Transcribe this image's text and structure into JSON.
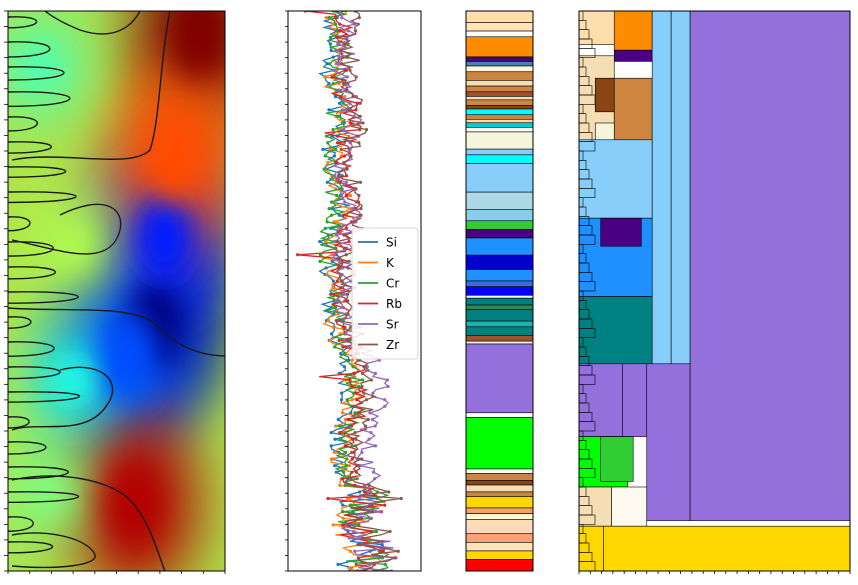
{
  "chart_data": [
    {
      "type": "heatmap",
      "title": "",
      "xlabel": "",
      "ylabel": "",
      "colormap": "jet",
      "description_values": "Wavelet power spectrum with black significance contours; high power (red) at top-right, bottom-center; low power (blue) center-right.",
      "hotspots": [
        {
          "x": 0.88,
          "y": 0.04,
          "value": 1.0
        },
        {
          "x": 0.77,
          "y": 0.26,
          "value": 0.8
        },
        {
          "x": 0.58,
          "y": 0.88,
          "value": 0.95
        },
        {
          "x": 0.3,
          "y": 0.42,
          "value": 0.55
        },
        {
          "x": 0.18,
          "y": 0.86,
          "value": 0.5
        },
        {
          "x": 0.3,
          "y": 0.66,
          "value": 0.4
        },
        {
          "x": 0.15,
          "y": 0.1,
          "value": 0.45
        }
      ],
      "coldspots": [
        {
          "x": 0.68,
          "y": 0.56,
          "value": 0.0
        },
        {
          "x": 0.72,
          "y": 0.4,
          "value": 0.15
        },
        {
          "x": 0.55,
          "y": 0.62,
          "value": 0.2
        }
      ]
    },
    {
      "type": "line",
      "title": "",
      "xlabel": "",
      "ylabel": "",
      "legend_position": "center",
      "series": [
        {
          "name": "Si",
          "color": "#1f77b4"
        },
        {
          "name": "K",
          "color": "#ff7f0e"
        },
        {
          "name": "Cr",
          "color": "#2ca02c"
        },
        {
          "name": "Rb",
          "color": "#d62728"
        },
        {
          "name": "Sr",
          "color": "#9467bd"
        },
        {
          "name": "Zr",
          "color": "#8c564b"
        }
      ]
    },
    {
      "type": "bar",
      "orientation": "stacked-horizontal-strip",
      "title": "",
      "bands": [
        {
          "color": "#ffdead",
          "size": 2
        },
        {
          "color": "#ffe4b5",
          "size": 1.5
        },
        {
          "color": "#ffffff",
          "size": 1
        },
        {
          "color": "#ff8c00",
          "size": 3.5
        },
        {
          "color": "#4b0082",
          "size": 0.8
        },
        {
          "color": "#4682b4",
          "size": 0.8
        },
        {
          "color": "#fff8dc",
          "size": 1
        },
        {
          "color": "#cd853f",
          "size": 1.5
        },
        {
          "color": "#f5deb3",
          "size": 1
        },
        {
          "color": "#cd853f",
          "size": 1
        },
        {
          "color": "#a0522d",
          "size": 0.8
        },
        {
          "color": "#f5deb3",
          "size": 0.6
        },
        {
          "color": "#cd853f",
          "size": 1
        },
        {
          "color": "#8b4513",
          "size": 0.6
        },
        {
          "color": "#00ffff",
          "size": 1
        },
        {
          "color": "#cd853f",
          "size": 0.8
        },
        {
          "color": "#f5deb3",
          "size": 0.6
        },
        {
          "color": "#00ced1",
          "size": 0.8
        },
        {
          "color": "#fffaf0",
          "size": 0.8
        },
        {
          "color": "#f5f5dc",
          "size": 3
        },
        {
          "color": "#87cefa",
          "size": 1
        },
        {
          "color": "#00ffff",
          "size": 1.5
        },
        {
          "color": "#87cefa",
          "size": 5
        },
        {
          "color": "#add8e6",
          "size": 3
        },
        {
          "color": "#87ceeb",
          "size": 2
        },
        {
          "color": "#32cd32",
          "size": 1.5
        },
        {
          "color": "#4b0082",
          "size": 1.5
        },
        {
          "color": "#1e90ff",
          "size": 3
        },
        {
          "color": "#0000cd",
          "size": 2.5
        },
        {
          "color": "#1e90ff",
          "size": 2
        },
        {
          "color": "#4169e1",
          "size": 1
        },
        {
          "color": "#0000ff",
          "size": 1.5
        },
        {
          "color": "#ffffff",
          "size": 0.5
        },
        {
          "color": "#008080",
          "size": 1.2
        },
        {
          "color": "#2e8b57",
          "size": 0.8
        },
        {
          "color": "#008080",
          "size": 2
        },
        {
          "color": "#20b2aa",
          "size": 1
        },
        {
          "color": "#008080",
          "size": 1.5
        },
        {
          "color": "#a0522d",
          "size": 1
        },
        {
          "color": "#f5f5dc",
          "size": 0.5
        },
        {
          "color": "#9370db",
          "size": 12
        },
        {
          "color": "#ffffff",
          "size": 0.8
        },
        {
          "color": "#00ff00",
          "size": 9
        },
        {
          "color": "#ffffff",
          "size": 0.8
        },
        {
          "color": "#cd853f",
          "size": 1.2
        },
        {
          "color": "#8b4513",
          "size": 0.8
        },
        {
          "color": "#f5deb3",
          "size": 1.2
        },
        {
          "color": "#cd853f",
          "size": 0.8
        },
        {
          "color": "#ffd700",
          "size": 2
        },
        {
          "color": "#f4a460",
          "size": 1
        },
        {
          "color": "#fffacd",
          "size": 1
        },
        {
          "color": "#ffdab9",
          "size": 2.5
        },
        {
          "color": "#ffa07a",
          "size": 1.5
        },
        {
          "color": "#ffe4b5",
          "size": 1.5
        },
        {
          "color": "#ffd700",
          "size": 1.5
        },
        {
          "color": "#ff0000",
          "size": 2
        }
      ]
    },
    {
      "type": "heatmap",
      "title": "",
      "subtype": "treemap",
      "tiles": [
        {
          "x0": 0.0,
          "y0": 0.0,
          "x1": 0.4,
          "y1": 0.06,
          "color": "#ffdead"
        },
        {
          "x0": 0.13,
          "y0": 0.0,
          "x1": 0.27,
          "y1": 0.07,
          "color": "#ff8c00"
        },
        {
          "x0": 0.13,
          "y0": 0.07,
          "x1": 0.27,
          "y1": 0.09,
          "color": "#4b0082"
        },
        {
          "x0": 0.0,
          "y0": 0.08,
          "x1": 0.13,
          "y1": 0.23,
          "color": "#f5deb3"
        },
        {
          "x0": 0.06,
          "y0": 0.12,
          "x1": 0.13,
          "y1": 0.18,
          "color": "#8b4513"
        },
        {
          "x0": 0.13,
          "y0": 0.12,
          "x1": 0.27,
          "y1": 0.23,
          "color": "#cd853f"
        },
        {
          "x0": 0.06,
          "y0": 0.2,
          "x1": 0.13,
          "y1": 0.23,
          "color": "#f5f5dc"
        },
        {
          "x0": 0.0,
          "y0": 0.23,
          "x1": 0.27,
          "y1": 0.37,
          "color": "#87cefa"
        },
        {
          "x0": 0.27,
          "y0": 0.0,
          "x1": 0.34,
          "y1": 0.63,
          "color": "#87cefa"
        },
        {
          "x0": 0.34,
          "y0": 0.0,
          "x1": 0.41,
          "y1": 0.63,
          "color": "#87cefa"
        },
        {
          "x0": 0.0,
          "y0": 0.37,
          "x1": 0.27,
          "y1": 0.51,
          "color": "#1e90ff"
        },
        {
          "x0": 0.08,
          "y0": 0.37,
          "x1": 0.23,
          "y1": 0.42,
          "color": "#4b0082"
        },
        {
          "x0": 0.0,
          "y0": 0.51,
          "x1": 0.27,
          "y1": 0.63,
          "color": "#008080"
        },
        {
          "x0": 0.0,
          "y0": 0.63,
          "x1": 0.16,
          "y1": 0.76,
          "color": "#9370db"
        },
        {
          "x0": 0.16,
          "y0": 0.63,
          "x1": 0.25,
          "y1": 0.76,
          "color": "#9370db"
        },
        {
          "x0": 0.25,
          "y0": 0.63,
          "x1": 0.41,
          "y1": 0.91,
          "color": "#9370db"
        },
        {
          "x0": 0.41,
          "y0": 0.0,
          "x1": 1.0,
          "y1": 0.91,
          "color": "#9370db"
        },
        {
          "x0": 0.0,
          "y0": 0.76,
          "x1": 0.18,
          "y1": 0.85,
          "color": "#00ff00"
        },
        {
          "x0": 0.08,
          "y0": 0.76,
          "x1": 0.2,
          "y1": 0.84,
          "color": "#32cd32"
        },
        {
          "x0": 0.0,
          "y0": 0.85,
          "x1": 0.12,
          "y1": 0.92,
          "color": "#f5deb3"
        },
        {
          "x0": 0.12,
          "y0": 0.85,
          "x1": 0.25,
          "y1": 0.92,
          "color": "#fffaf0"
        },
        {
          "x0": 0.0,
          "y0": 0.92,
          "x1": 0.09,
          "y1": 1.0,
          "color": "#ffd700"
        },
        {
          "x0": 0.09,
          "y0": 0.92,
          "x1": 1.0,
          "y1": 1.0,
          "color": "#ffd700"
        }
      ]
    }
  ]
}
